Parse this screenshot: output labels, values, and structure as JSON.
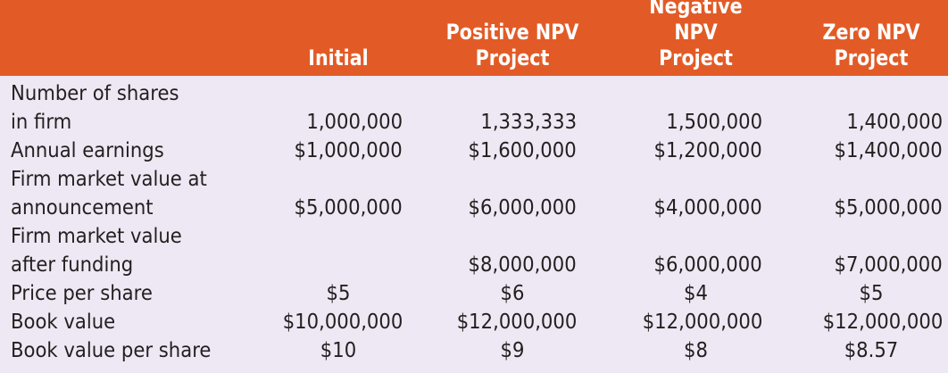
{
  "header": {
    "col_initial": "Initial",
    "col_positive": "Positive NPV\nProject",
    "col_negative": "Negative NPV\nProject",
    "col_zero": "Zero NPV\nProject"
  },
  "colors": {
    "header_bg": "#e25b26",
    "body_bg": "#ede8f3",
    "header_text": "#ffffff"
  },
  "rows": [
    {
      "label": "Number of shares\n   in firm",
      "values": [
        "1,000,000",
        "1,333,333",
        "1,500,000",
        "1,400,000"
      ]
    },
    {
      "label": "Annual earnings",
      "values": [
        "$1,000,000",
        "$1,600,000",
        "$1,200,000",
        "$1,400,000"
      ]
    },
    {
      "label": "Firm market value at\n   announcement",
      "values": [
        "$5,000,000",
        "$6,000,000",
        "$4,000,000",
        "$5,000,000"
      ]
    },
    {
      "label": "Firm market value\n   after funding",
      "values": [
        "",
        "$8,000,000",
        "$6,000,000",
        "$7,000,000"
      ]
    },
    {
      "label": "Price per share",
      "values": [
        "$5",
        "$6",
        "$4",
        "$5"
      ]
    },
    {
      "label": "Book value",
      "values": [
        "$10,000,000",
        "$12,000,000",
        "$12,000,000",
        "$12,000,000"
      ]
    },
    {
      "label": "Book value per share",
      "values": [
        "$10",
        "$9",
        "$8",
        "$8.57"
      ]
    }
  ]
}
